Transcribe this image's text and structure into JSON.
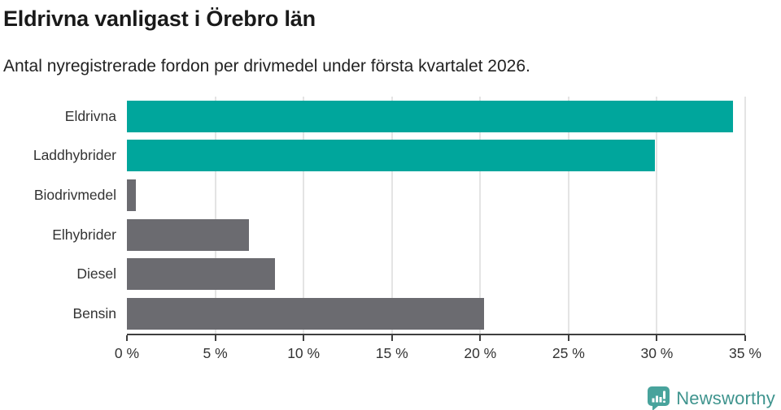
{
  "chart_data": {
    "type": "bar",
    "orientation": "horizontal",
    "title": "Eldrivna vanligast i Örebro län",
    "subtitle": "Antal nyregistrerade fordon per drivmedel under första kvartalet 2026.",
    "categories": [
      "Eldrivna",
      "Laddhybrider",
      "Biodrivmedel",
      "Elhybrider",
      "Diesel",
      "Bensin"
    ],
    "values": [
      34.3,
      29.9,
      0.5,
      6.9,
      8.4,
      20.2
    ],
    "unit": "%",
    "xlim": [
      0,
      35
    ],
    "x_ticks": [
      0,
      5,
      10,
      15,
      20,
      25,
      30,
      35
    ],
    "x_tick_labels": [
      "0 %",
      "5 %",
      "10 %",
      "15 %",
      "20 %",
      "25 %",
      "30 %",
      "35 %"
    ],
    "bar_colors": [
      "#00a69c",
      "#00a69c",
      "#6b6b70",
      "#6b6b70",
      "#6b6b70",
      "#6b6b70"
    ],
    "highlight_color": "#00a69c",
    "default_color": "#6b6b70",
    "gridline_color": "#e4e4e4",
    "axis_color": "#3f3f3f",
    "grid": true,
    "legend": false
  },
  "footer": {
    "brand": "Newsworthy",
    "brand_color": "#3f948e",
    "logo_color": "#48a39c",
    "logo_icon": "newsworthy-speech-bubble-chart-icon"
  }
}
